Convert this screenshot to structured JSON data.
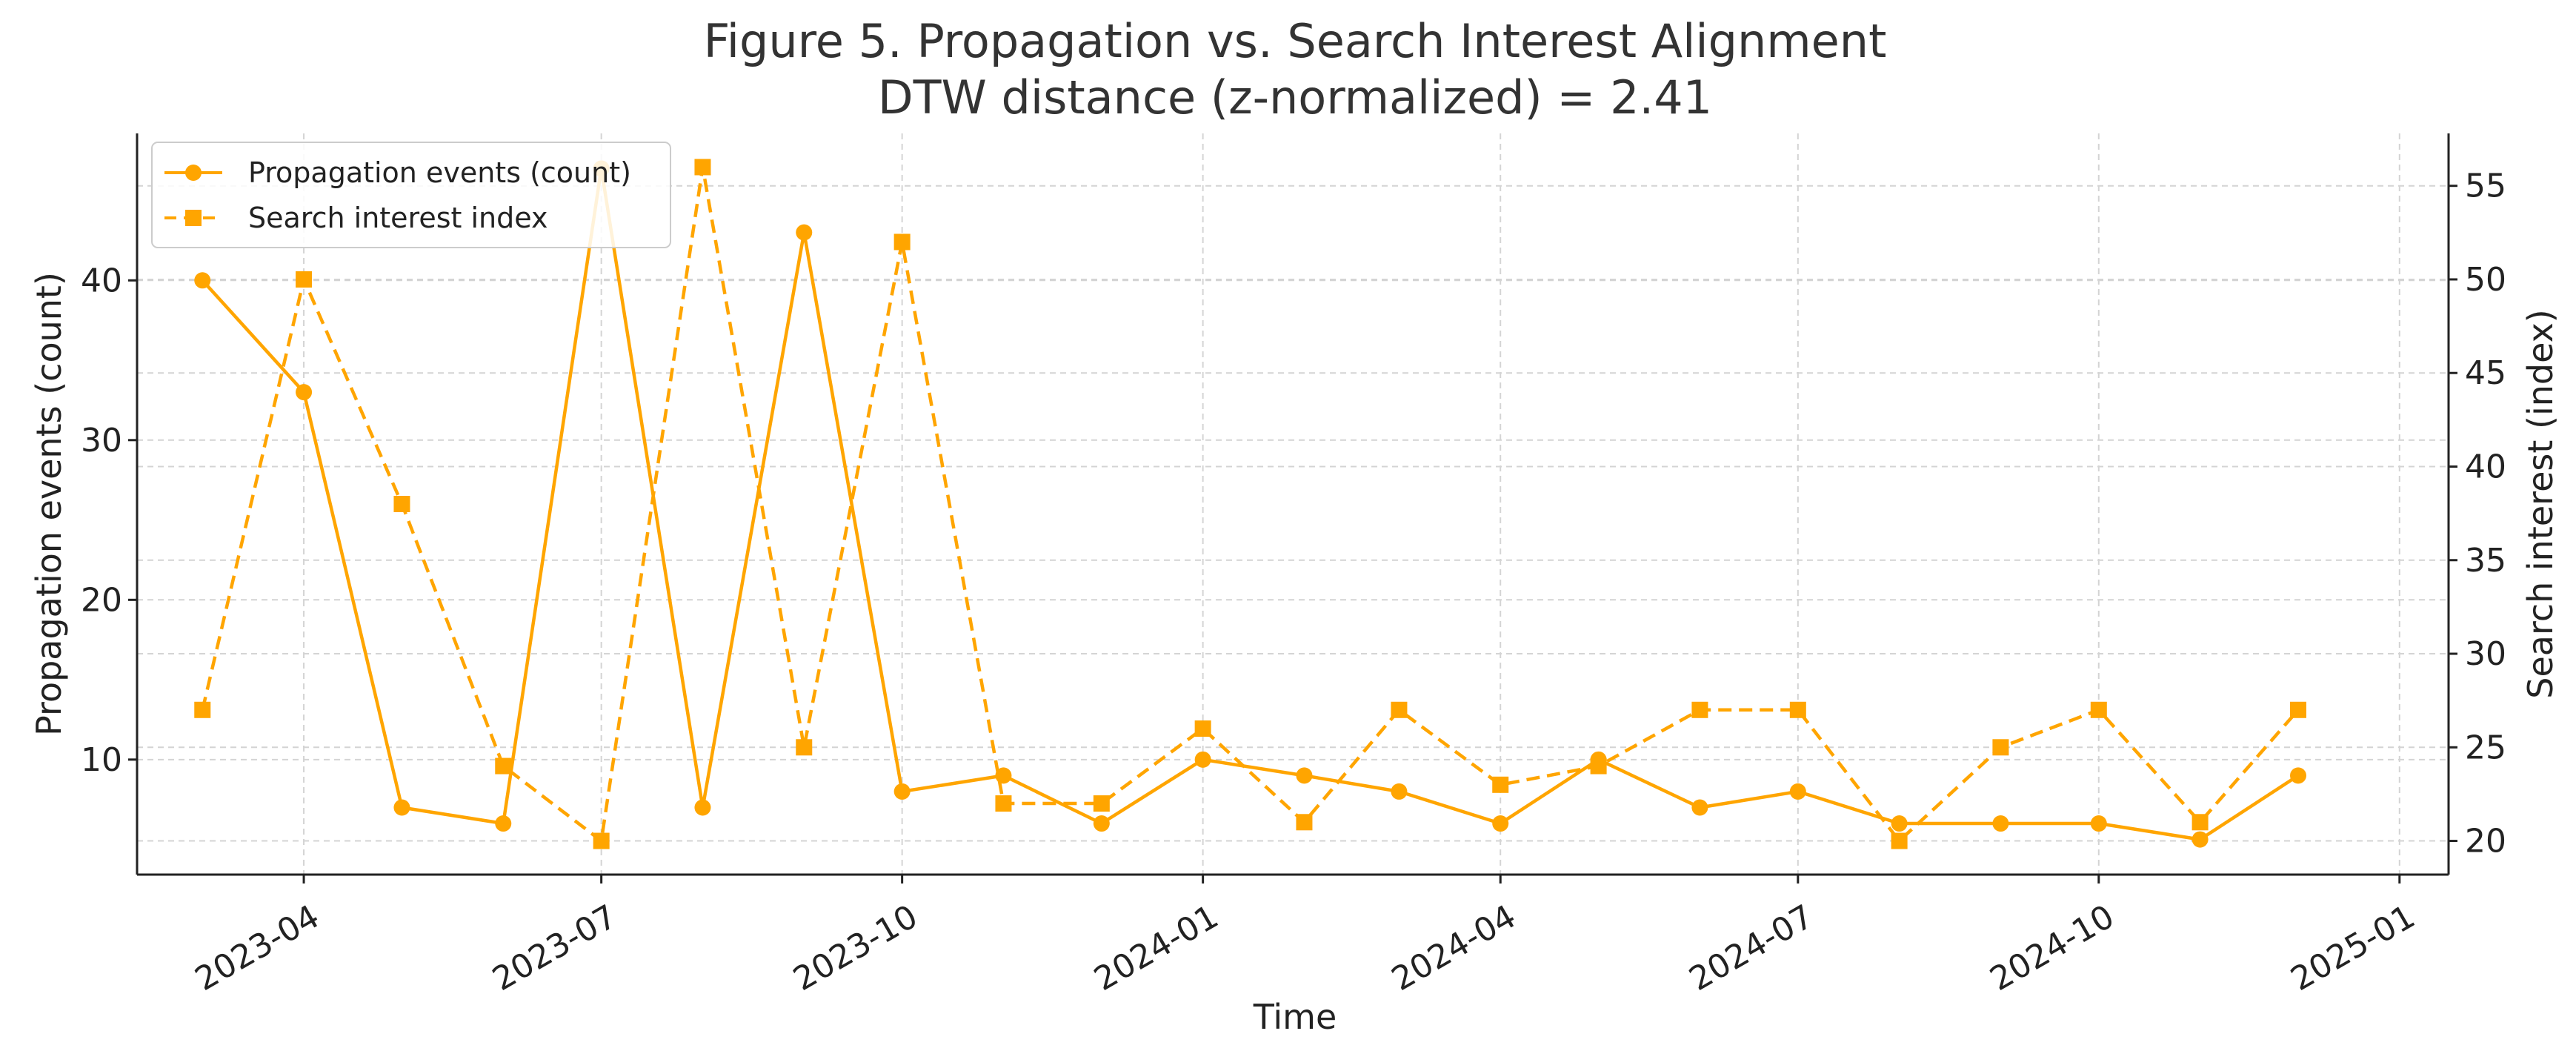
{
  "chart_data": {
    "type": "line",
    "title": "Figure 5. Propagation vs. Search Interest Alignment",
    "subtitle": "DTW distance (z-normalized) = 2.41",
    "xlabel": "Time",
    "ylabel_left": "Propagation events (count)",
    "ylabel_right": "Search interest (index)",
    "x_ticks": [
      "2023-04",
      "2023-07",
      "2023-10",
      "2024-01",
      "2024-04",
      "2024-07",
      "2024-10",
      "2025-01"
    ],
    "y_left_ticks": [
      "10",
      "20",
      "30",
      "40"
    ],
    "y_right_ticks": [
      "20",
      "25",
      "30",
      "35",
      "40",
      "45",
      "50",
      "55"
    ],
    "ylim_left": [
      2.8,
      49.2
    ],
    "ylim_right": [
      18.2,
      57.8
    ],
    "grid": true,
    "legend_position": "top-left",
    "x": [
      "2023-03",
      "2023-04",
      "2023-05",
      "2023-06",
      "2023-07",
      "2023-08",
      "2023-09",
      "2023-10",
      "2023-11",
      "2023-12",
      "2024-01",
      "2024-02",
      "2024-03",
      "2024-04",
      "2024-05",
      "2024-06",
      "2024-07",
      "2024-08",
      "2024-09",
      "2024-10",
      "2024-11",
      "2024-12"
    ],
    "series": [
      {
        "name": "Propagation events (count)",
        "axis": "left",
        "style": "solid",
        "marker": "circle",
        "color": "#FFA500",
        "values": [
          40,
          33,
          7,
          6,
          47,
          7,
          43,
          8,
          9,
          6,
          10,
          9,
          8,
          6,
          10,
          7,
          8,
          6,
          6,
          6,
          5,
          9
        ]
      },
      {
        "name": "Search interest index",
        "axis": "right",
        "style": "dashed",
        "marker": "square",
        "color": "#FFA500",
        "values": [
          27,
          50,
          38,
          24,
          20,
          56,
          25,
          52,
          22,
          22,
          26,
          21,
          27,
          23,
          24,
          27,
          27,
          20,
          25,
          27,
          21,
          27
        ]
      }
    ]
  }
}
